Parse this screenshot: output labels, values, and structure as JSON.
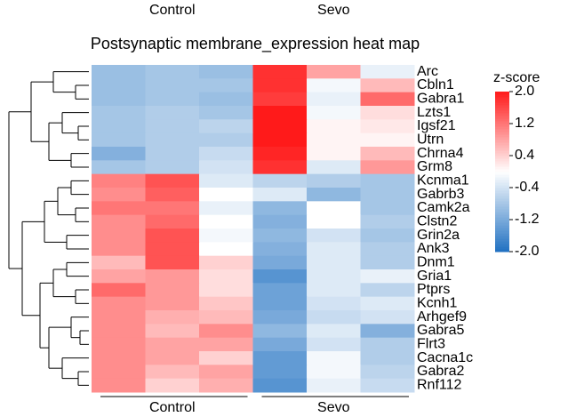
{
  "chart_data": {
    "type": "heatmap",
    "title": "Postsynaptic membrane_expression heat map",
    "groups": [
      {
        "name": "Control",
        "columns": 3
      },
      {
        "name": "Sevo",
        "columns": 3
      }
    ],
    "rows": [
      "Arc",
      "Cbln1",
      "Gabra1",
      "Lzts1",
      "Igsf21",
      "Utrn",
      "Chrna4",
      "Grm8",
      "Kcnma1",
      "Gabrb3",
      "Camk2a",
      "Clstn2",
      "Grin2a",
      "Ank3",
      "Dnm1",
      "Gria1",
      "Ptprs",
      "Kcnh1",
      "Arhgef9",
      "Gabra5",
      "Flrt3",
      "Cacna1c",
      "Gabra2",
      "Rnf112"
    ],
    "values": [
      [
        -0.9,
        -0.8,
        -0.9,
        1.8,
        0.8,
        -0.2
      ],
      [
        -0.9,
        -0.8,
        -0.8,
        1.8,
        -0.1,
        0.6
      ],
      [
        -0.9,
        -0.8,
        -0.9,
        1.7,
        -0.2,
        1.3
      ],
      [
        -0.8,
        -0.7,
        -0.8,
        2.0,
        -0.1,
        0.3
      ],
      [
        -0.8,
        -0.7,
        -0.6,
        2.0,
        0.1,
        0.2
      ],
      [
        -0.8,
        -0.7,
        -0.7,
        2.0,
        0.1,
        0.1
      ],
      [
        -1.1,
        -0.7,
        -0.5,
        1.9,
        0.1,
        0.6
      ],
      [
        -0.8,
        -0.7,
        -0.4,
        1.8,
        -0.3,
        0.9
      ],
      [
        1.1,
        1.5,
        -0.3,
        -0.6,
        -0.7,
        -0.8
      ],
      [
        1.0,
        1.4,
        0.0,
        -0.3,
        -1.0,
        -0.8
      ],
      [
        1.2,
        1.2,
        -0.2,
        -1.0,
        0.0,
        -0.8
      ],
      [
        1.0,
        1.3,
        0.0,
        -1.1,
        0.0,
        -0.7
      ],
      [
        1.0,
        1.5,
        -0.1,
        -1.0,
        -0.4,
        -0.8
      ],
      [
        1.0,
        1.5,
        0.0,
        -1.1,
        -0.3,
        -0.7
      ],
      [
        0.6,
        1.5,
        0.4,
        -1.2,
        -0.3,
        -0.7
      ],
      [
        0.8,
        0.9,
        0.3,
        -1.5,
        -0.3,
        -0.2
      ],
      [
        1.3,
        0.9,
        0.3,
        -1.3,
        -0.3,
        -0.6
      ],
      [
        1.0,
        0.9,
        0.5,
        -1.3,
        -0.4,
        -0.3
      ],
      [
        1.0,
        0.7,
        0.6,
        -1.2,
        -0.5,
        -0.4
      ],
      [
        1.0,
        0.6,
        1.0,
        -1.0,
        -0.3,
        -1.1
      ],
      [
        1.0,
        0.8,
        0.8,
        -1.2,
        -0.4,
        -0.7
      ],
      [
        1.0,
        0.8,
        0.4,
        -1.4,
        -0.1,
        -0.7
      ],
      [
        1.0,
        0.6,
        0.8,
        -1.4,
        -0.1,
        -0.6
      ],
      [
        1.0,
        0.4,
        0.7,
        -1.5,
        -0.2,
        -0.5
      ]
    ],
    "colorbar_title": "z-score",
    "clim": [
      -2,
      2
    ],
    "cticks": [
      {
        "value": 2,
        "label": "2.0"
      },
      1.2,
      0.4,
      -0.4,
      -1.2,
      {
        "value": -2,
        "label": "-2.0"
      }
    ],
    "colormap": [
      "#1f70c1",
      "#ffffff",
      "#ff1a1a"
    ]
  }
}
